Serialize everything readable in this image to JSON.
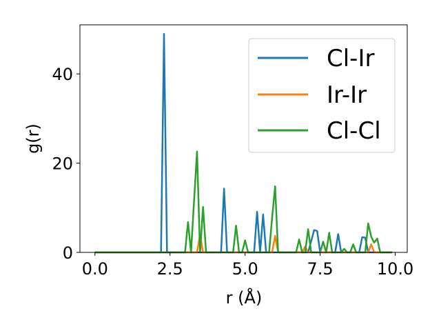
{
  "chart_data": {
    "type": "line",
    "title": "",
    "xlabel": "r (Å)",
    "ylabel": "g(r)",
    "xlim": [
      -0.5,
      10.4
    ],
    "ylim": [
      0,
      51
    ],
    "xticks": [
      {
        "value": 0.0,
        "label": "0.0"
      },
      {
        "value": 2.5,
        "label": "2.5"
      },
      {
        "value": 5.0,
        "label": "5.0"
      },
      {
        "value": 7.5,
        "label": "7.5"
      },
      {
        "value": 10.0,
        "label": "10.0"
      }
    ],
    "yticks": [
      {
        "value": 0,
        "label": "0"
      },
      {
        "value": 20,
        "label": "20"
      },
      {
        "value": 40,
        "label": "40"
      }
    ],
    "grid": false,
    "legend_position": "top-right",
    "series": [
      {
        "name": "Cl-Ir",
        "color": "#1f77b4",
        "x": [
          0.0,
          2.2,
          2.3,
          2.4,
          4.2,
          4.3,
          4.4,
          5.3,
          5.4,
          5.5,
          5.6,
          5.7,
          7.1,
          7.2,
          7.3,
          7.4,
          7.5,
          8.0,
          8.1,
          8.2,
          8.8,
          8.9,
          9.0,
          9.1,
          9.9
        ],
        "y": [
          0,
          0,
          49,
          0,
          0,
          14.3,
          0,
          0,
          9.1,
          0,
          8.5,
          0,
          0,
          2.5,
          5.0,
          4.8,
          0,
          0,
          4.1,
          0,
          0,
          3.4,
          3.3,
          0,
          0
        ]
      },
      {
        "name": "Ir-Ir",
        "color": "#ff7f0e",
        "x": [
          0.0,
          3.4,
          3.5,
          3.6,
          5.9,
          6.0,
          6.1,
          6.9,
          7.0,
          7.1,
          9.1,
          9.2,
          9.3,
          9.9
        ],
        "y": [
          0,
          0,
          4.0,
          0,
          0,
          3.7,
          0,
          0,
          1.3,
          0,
          0,
          1.8,
          0,
          0
        ]
      },
      {
        "name": "Cl-Cl",
        "color": "#2ca02c",
        "x": [
          0.0,
          3.0,
          3.1,
          3.2,
          3.3,
          3.4,
          3.5,
          3.6,
          3.7,
          4.6,
          4.7,
          4.8,
          4.9,
          5.0,
          5.1,
          5.8,
          5.9,
          6.0,
          6.1,
          6.7,
          6.8,
          6.9,
          7.0,
          7.1,
          7.2,
          7.5,
          7.6,
          7.7,
          7.8,
          7.9,
          8.2,
          8.3,
          8.4,
          8.5,
          8.6,
          8.7,
          9.0,
          9.1,
          9.2,
          9.3,
          9.4,
          9.5,
          9.9
        ],
        "y": [
          0,
          0,
          6.8,
          0,
          11.5,
          22.6,
          0,
          10.2,
          0,
          0,
          6.0,
          0,
          0,
          2.7,
          0,
          0,
          7.8,
          14.8,
          0,
          0,
          2.9,
          0,
          0,
          5.2,
          0,
          0,
          2.4,
          0,
          4.4,
          0,
          0,
          0.8,
          0,
          0,
          1.8,
          0,
          0,
          6.5,
          3.5,
          2.2,
          3.1,
          0,
          0
        ]
      }
    ]
  }
}
